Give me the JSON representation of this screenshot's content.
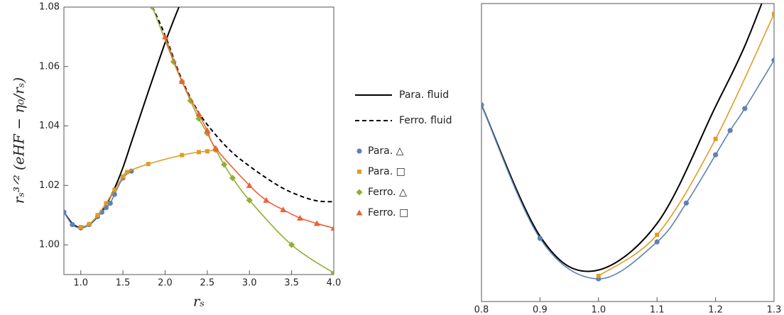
{
  "chart_data": [
    {
      "type": "line",
      "x_label": "rₛ",
      "y_label": "rₛ³ᐟ² (eHF − η₀/rₛ)",
      "xlim": [
        0.8,
        4.0
      ],
      "ylim": [
        0.99,
        1.08
      ],
      "xticks": [
        {
          "value": 1.0,
          "label": "1.0"
        },
        1.5,
        {
          "value": 2.0,
          "label": "2.0"
        },
        2.5,
        {
          "value": 3.0,
          "label": "3.0"
        },
        3.5,
        {
          "value": 4.0,
          "label": "4.0"
        }
      ],
      "yticks": [
        {
          "value": 1.0,
          "label": "1.00"
        },
        1.02,
        1.04,
        1.06,
        1.08
      ],
      "series": [
        {
          "name": "Para. fluid",
          "color": "#000000",
          "dash": false,
          "marker": "none",
          "x": [
            0.8,
            0.9,
            1.0,
            1.1,
            1.2,
            1.3,
            1.4,
            1.5,
            1.6,
            1.7,
            1.8,
            1.9,
            2.0,
            2.1,
            2.2
          ],
          "values": [
            1.011,
            1.0072,
            1.0058,
            1.0068,
            1.0095,
            1.0135,
            1.019,
            1.026,
            1.0345,
            1.043,
            1.0515,
            1.0598,
            1.068,
            1.0755,
            1.0825
          ]
        },
        {
          "name": "Ferro. fluid",
          "color": "#000000",
          "dash": true,
          "marker": "none",
          "x": [
            1.85,
            2.0,
            2.2,
            2.4,
            2.6,
            2.8,
            3.0,
            3.2,
            3.4,
            3.6,
            3.8,
            4.0
          ],
          "values": [
            1.08,
            1.0705,
            1.0555,
            1.0445,
            1.037,
            1.031,
            1.0265,
            1.0225,
            1.019,
            1.0165,
            1.0148,
            1.0145
          ]
        },
        {
          "name": "Para. △",
          "color": "#5e81b5",
          "dash": false,
          "marker": "circle",
          "x": [
            0.8,
            0.9,
            1.0,
            1.1,
            1.2,
            1.25,
            1.3,
            1.35,
            1.4,
            1.5,
            1.6
          ],
          "values": [
            1.011,
            1.0068,
            1.0057,
            1.0068,
            1.0095,
            1.011,
            1.0125,
            1.014,
            1.017,
            1.0225,
            1.0248
          ]
        },
        {
          "name": "Para. □",
          "color": "#e19c24",
          "dash": false,
          "marker": "square",
          "x": [
            1.0,
            1.1,
            1.2,
            1.3,
            1.4,
            1.5,
            1.55,
            1.8,
            2.2,
            2.4,
            2.5,
            2.6
          ],
          "values": [
            1.006,
            1.007,
            1.01,
            1.014,
            1.0185,
            1.023,
            1.0245,
            1.0272,
            1.0302,
            1.0312,
            1.0315,
            1.032
          ]
        },
        {
          "name": "Ferro. △",
          "color": "#8fb032",
          "dash": false,
          "marker": "diamond",
          "x": [
            1.85,
            2.1,
            2.2,
            2.3,
            2.4,
            2.5,
            2.6,
            2.7,
            2.8,
            3.0,
            3.5,
            4.0
          ],
          "values": [
            1.08,
            1.0616,
            1.055,
            1.0485,
            1.0425,
            1.0375,
            1.032,
            1.027,
            1.0225,
            1.015,
            1.0,
            0.9905
          ]
        },
        {
          "name": "Ferro. □",
          "color": "#eb6235",
          "dash": false,
          "marker": "triangle",
          "x": [
            2.0,
            2.2,
            2.4,
            2.5,
            2.6,
            3.0,
            3.2,
            3.4,
            3.6,
            3.8,
            4.0
          ],
          "values": [
            1.07,
            1.055,
            1.044,
            1.0385,
            1.0325,
            1.02,
            1.015,
            1.0118,
            1.009,
            1.0072,
            1.0056
          ]
        }
      ]
    },
    {
      "type": "line",
      "xlim": [
        0.8,
        1.3
      ],
      "ylim": [
        1.005,
        1.0142
      ],
      "xticks": [
        0.8,
        0.9,
        {
          "value": 1.0,
          "label": "1.0"
        },
        1.1,
        1.2,
        1.3
      ],
      "series": [
        {
          "color": "#000000",
          "dash": false,
          "marker": "none",
          "x": [
            0.8,
            0.9,
            0.99,
            1.1,
            1.2,
            1.25,
            1.3
          ],
          "values": [
            1.01107,
            1.00702,
            1.00594,
            1.00741,
            1.01102,
            1.01289,
            1.0152
          ]
        },
        {
          "color": "#5e81b5",
          "dash": false,
          "marker": "circle",
          "x": [
            0.8,
            0.9,
            1.0,
            1.1,
            1.15,
            1.2,
            1.225,
            1.25,
            1.3
          ],
          "values": [
            1.01107,
            1.00695,
            1.0057,
            1.00684,
            1.00804,
            1.00953,
            1.01028,
            1.01096,
            1.01245
          ]
        },
        {
          "color": "#e19c24",
          "dash": false,
          "marker": "square",
          "x": [
            1.0,
            1.1,
            1.2,
            1.3
          ],
          "values": [
            1.00579,
            1.00706,
            1.01002,
            1.01388
          ]
        }
      ]
    }
  ]
}
